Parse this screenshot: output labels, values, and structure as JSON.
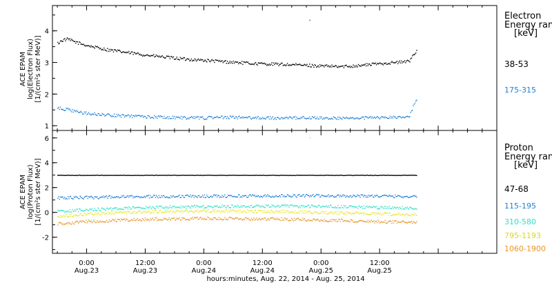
{
  "chart_data": [
    {
      "type": "scatter",
      "panel": "electron",
      "ylabel": [
        "ACE EPAM",
        "log(Electron Flux)",
        "[1/(cm²s ster MeV)]"
      ],
      "legend_title": [
        "Electron",
        "Energy ran",
        "[keV]"
      ],
      "ylim": [
        0.85,
        4.8
      ],
      "yticks": [
        1,
        2,
        3,
        4
      ],
      "series": [
        {
          "name": "38-53",
          "color": "#000000",
          "points": [
            [
              -6,
              3.62
            ],
            [
              -5,
              3.72
            ],
            [
              -4,
              3.75
            ],
            [
              -2,
              3.64
            ],
            [
              0,
              3.55
            ],
            [
              4,
              3.42
            ],
            [
              8,
              3.33
            ],
            [
              12,
              3.25
            ],
            [
              16,
              3.18
            ],
            [
              20,
              3.12
            ],
            [
              24,
              3.08
            ],
            [
              28,
              3.04
            ],
            [
              32,
              3.0
            ],
            [
              34,
              2.98
            ],
            [
              36,
              2.97
            ],
            [
              40,
              2.95
            ],
            [
              44,
              2.93
            ],
            [
              48,
              2.9
            ],
            [
              52,
              2.88
            ],
            [
              56,
              2.92
            ],
            [
              60,
              2.98
            ],
            [
              64,
              3.02
            ],
            [
              66,
              3.05
            ],
            [
              67,
              3.3
            ],
            [
              67.5,
              3.38
            ]
          ]
        },
        {
          "name": "175-315",
          "color": "#1f7fd6",
          "points": [
            [
              -6,
              1.57
            ],
            [
              -4,
              1.52
            ],
            [
              -2,
              1.45
            ],
            [
              0,
              1.4
            ],
            [
              4,
              1.35
            ],
            [
              8,
              1.32
            ],
            [
              12,
              1.3
            ],
            [
              16,
              1.28
            ],
            [
              20,
              1.27
            ],
            [
              24,
              1.26
            ],
            [
              28,
              1.28
            ],
            [
              32,
              1.27
            ],
            [
              36,
              1.26
            ],
            [
              40,
              1.25
            ],
            [
              44,
              1.27
            ],
            [
              48,
              1.26
            ],
            [
              52,
              1.25
            ],
            [
              56,
              1.26
            ],
            [
              60,
              1.27
            ],
            [
              64,
              1.28
            ],
            [
              66,
              1.3
            ],
            [
              67,
              1.7
            ],
            [
              67.5,
              1.8
            ]
          ]
        }
      ],
      "outliers": [
        {
          "x": 45.6,
          "y": 4.35,
          "series": 1
        }
      ]
    },
    {
      "type": "scatter",
      "panel": "proton",
      "ylabel": [
        "ACE EPAM",
        "log(Proton Flux)",
        "[1/(cm²s ster MeV)]"
      ],
      "legend_title": [
        "Proton",
        "Energy ran",
        "[keV]"
      ],
      "ylim": [
        -3.3,
        6.6
      ],
      "yticks": [
        -2,
        0,
        2,
        4,
        6
      ],
      "series": [
        {
          "name": "47-68",
          "color": "#000000",
          "points": [
            [
              -6,
              3.02
            ],
            [
              10,
              3.02
            ],
            [
              30,
              3.02
            ],
            [
              50,
              3.02
            ],
            [
              67.5,
              3.02
            ]
          ]
        },
        {
          "name": "115-195",
          "color": "#1f7fd6",
          "points": [
            [
              -6,
              1.2
            ],
            [
              10,
              1.3
            ],
            [
              30,
              1.35
            ],
            [
              45,
              1.38
            ],
            [
              60,
              1.35
            ],
            [
              67.5,
              1.3
            ]
          ]
        },
        {
          "name": "310-580",
          "color": "#2ee0c8",
          "points": [
            [
              -6,
              0.1
            ],
            [
              0,
              0.25
            ],
            [
              10,
              0.4
            ],
            [
              24,
              0.5
            ],
            [
              40,
              0.55
            ],
            [
              50,
              0.5
            ],
            [
              60,
              0.42
            ],
            [
              67.5,
              0.38
            ]
          ]
        },
        {
          "name": "795-1193",
          "color": "#e6e628",
          "points": [
            [
              -6,
              -0.3
            ],
            [
              0,
              -0.1
            ],
            [
              10,
              0.05
            ],
            [
              24,
              0.15
            ],
            [
              40,
              0.1
            ],
            [
              50,
              0.0
            ],
            [
              60,
              -0.1
            ],
            [
              67.5,
              -0.15
            ]
          ]
        },
        {
          "name": "1060-1900",
          "color": "#e69628",
          "points": [
            [
              -6,
              -0.9
            ],
            [
              0,
              -0.7
            ],
            [
              10,
              -0.55
            ],
            [
              24,
              -0.45
            ],
            [
              40,
              -0.5
            ],
            [
              50,
              -0.6
            ],
            [
              60,
              -0.72
            ],
            [
              67.5,
              -0.78
            ]
          ]
        }
      ],
      "outliers": [
        {
          "x": 45.6,
          "y": 6.05,
          "series": 3
        }
      ]
    }
  ],
  "x_axis": {
    "xlim": [
      -7,
      84
    ],
    "ticks": [
      {
        "hour": 0,
        "time": "0:00",
        "date": "Aug.23"
      },
      {
        "hour": 12,
        "time": "12:00",
        "date": "Aug.23"
      },
      {
        "hour": 24,
        "time": "0:00",
        "date": "Aug.24"
      },
      {
        "hour": 36,
        "time": "12:00",
        "date": "Aug.24"
      },
      {
        "hour": 48,
        "time": "0:00",
        "date": "Aug.25"
      },
      {
        "hour": 60,
        "time": "12:00",
        "date": "Aug.25"
      }
    ],
    "label": "hours:minutes, Aug. 22, 2014 - Aug. 25, 2014"
  }
}
